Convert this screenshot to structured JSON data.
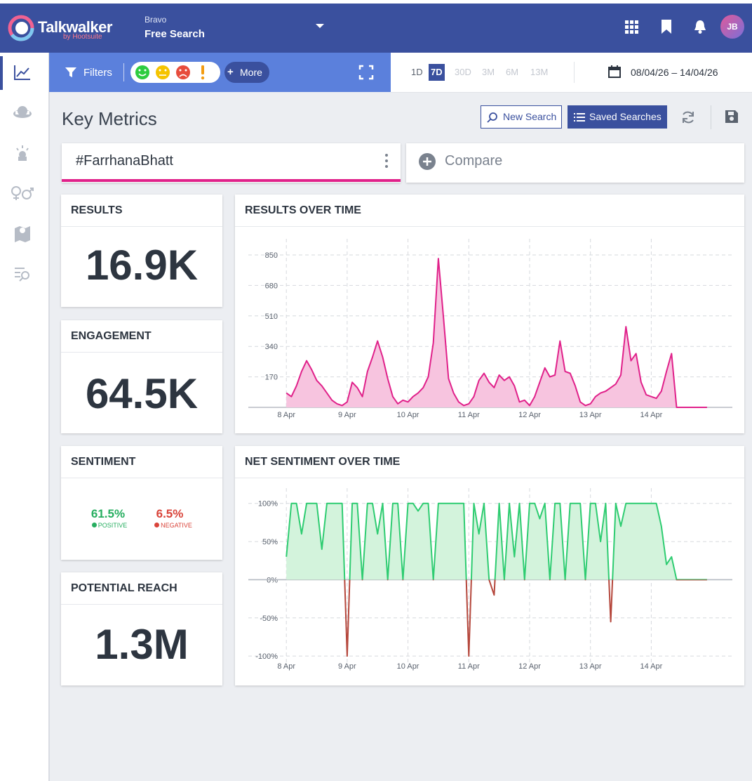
{
  "header": {
    "logo": "Talkwalker",
    "logo_sub": "by Hootsuite",
    "workspace": "Bravo",
    "project": "Free Search",
    "avatar": "JB"
  },
  "toolbar": {
    "filters": "Filters",
    "more": "More",
    "ranges": [
      "1D",
      "7D",
      "30D",
      "3M",
      "6M",
      "13M"
    ],
    "active_range": 1,
    "date_range": "08/04/26 – 14/04/26"
  },
  "page": {
    "title": "Key Metrics",
    "new_search": "New Search",
    "saved_searches": "Saved Searches"
  },
  "tabs": {
    "query": "#FarrhanaBhatt",
    "compare": "Compare"
  },
  "metrics": {
    "results": {
      "label": "RESULTS",
      "value": "16.9K"
    },
    "engagement": {
      "label": "ENGAGEMENT",
      "value": "64.5K"
    },
    "sentiment": {
      "label": "SENTIMENT",
      "positive": "61.5%",
      "positive_label": "POSITIVE",
      "negative": "6.5%",
      "negative_label": "NEGATIVE"
    },
    "reach": {
      "label": "POTENTIAL REACH",
      "value": "1.3M"
    }
  },
  "chart_data": [
    {
      "type": "area",
      "title": "RESULTS OVER TIME",
      "color": "#e0218a",
      "fill": "#f7c4df",
      "x": [
        0,
        2,
        4,
        6,
        8,
        10,
        12,
        14,
        16,
        18,
        20,
        22,
        24,
        26,
        28,
        30,
        32,
        34,
        36,
        38,
        40,
        42,
        44,
        46,
        48,
        50,
        52,
        54,
        56,
        58,
        60,
        62,
        64,
        66,
        68,
        70,
        72,
        74,
        76,
        78,
        80,
        82,
        84,
        86,
        88,
        90,
        92,
        94,
        96,
        98,
        100,
        102,
        104,
        106,
        108,
        110,
        112,
        114,
        116,
        118,
        120,
        122,
        124,
        126,
        128,
        130,
        132,
        134,
        136,
        138,
        140,
        142,
        144,
        146,
        148,
        150,
        152,
        154,
        156,
        158,
        160,
        162,
        164,
        166
      ],
      "values": [
        80,
        60,
        120,
        200,
        260,
        210,
        150,
        120,
        80,
        40,
        20,
        10,
        30,
        140,
        110,
        60,
        200,
        280,
        370,
        280,
        160,
        60,
        20,
        40,
        30,
        60,
        80,
        110,
        170,
        360,
        830,
        500,
        160,
        80,
        30,
        10,
        20,
        60,
        150,
        190,
        140,
        110,
        180,
        150,
        170,
        120,
        30,
        40,
        10,
        60,
        140,
        220,
        170,
        180,
        370,
        200,
        190,
        120,
        30,
        10,
        20,
        60,
        80,
        90,
        110,
        130,
        180,
        450,
        260,
        300,
        140,
        70,
        60,
        50,
        90,
        200,
        300,
        0,
        0,
        0,
        0,
        0,
        0,
        0
      ],
      "xlim": [
        -15,
        176
      ],
      "xticks": [
        {
          "value": 0,
          "label": "8 Apr"
        },
        {
          "value": 24,
          "label": "9 Apr"
        },
        {
          "value": 48,
          "label": "10 Apr"
        },
        {
          "value": 72,
          "label": "11 Apr"
        },
        {
          "value": 96,
          "label": "12 Apr"
        },
        {
          "value": 120,
          "label": "13 Apr"
        },
        {
          "value": 144,
          "label": "14 Apr"
        }
      ],
      "ylim": [
        0,
        940
      ],
      "yticks": [
        170,
        340,
        510,
        680,
        850
      ],
      "grid": true
    },
    {
      "type": "area",
      "title": "NET SENTIMENT OVER TIME",
      "color": "#2ecc71",
      "negative_color": "#b5473c",
      "fill": "#d3f3dc",
      "x": [
        0,
        2,
        4,
        6,
        8,
        10,
        12,
        14,
        16,
        18,
        20,
        22,
        24,
        26,
        28,
        30,
        32,
        34,
        36,
        38,
        40,
        42,
        44,
        46,
        48,
        50,
        52,
        54,
        56,
        58,
        60,
        62,
        64,
        66,
        68,
        70,
        72,
        74,
        76,
        78,
        80,
        82,
        84,
        86,
        88,
        90,
        92,
        94,
        96,
        98,
        100,
        102,
        104,
        106,
        108,
        110,
        112,
        114,
        116,
        118,
        120,
        122,
        124,
        126,
        128,
        130,
        132,
        134,
        136,
        138,
        140,
        142,
        144,
        146,
        148,
        150,
        152,
        154,
        156,
        158,
        160,
        162,
        164,
        166
      ],
      "values": [
        30,
        100,
        100,
        60,
        100,
        100,
        100,
        40,
        100,
        100,
        100,
        100,
        -100,
        100,
        100,
        0,
        100,
        100,
        60,
        100,
        0,
        100,
        100,
        0,
        100,
        100,
        90,
        100,
        100,
        0,
        100,
        100,
        100,
        100,
        100,
        100,
        -100,
        100,
        60,
        100,
        0,
        -20,
        100,
        0,
        100,
        30,
        100,
        0,
        100,
        100,
        80,
        100,
        0,
        100,
        100,
        0,
        100,
        100,
        100,
        0,
        100,
        100,
        50,
        100,
        -55,
        100,
        70,
        100,
        100,
        100,
        100,
        100,
        100,
        100,
        70,
        20,
        30,
        0,
        0,
        0,
        0,
        0,
        0,
        0
      ],
      "xlim": [
        -15,
        176
      ],
      "xticks": [
        {
          "value": 0,
          "label": "8 Apr"
        },
        {
          "value": 24,
          "label": "9 Apr"
        },
        {
          "value": 48,
          "label": "10 Apr"
        },
        {
          "value": 72,
          "label": "11 Apr"
        },
        {
          "value": 96,
          "label": "12 Apr"
        },
        {
          "value": 120,
          "label": "13 Apr"
        },
        {
          "value": 144,
          "label": "14 Apr"
        }
      ],
      "ylim": [
        -110,
        120
      ],
      "yticks": [
        {
          "value": 100,
          "label": "100%"
        },
        {
          "value": 50,
          "label": "50%"
        },
        {
          "value": 0,
          "label": "0%"
        },
        {
          "value": -50,
          "label": "-50%"
        },
        {
          "value": -100,
          "label": "-100%"
        }
      ],
      "grid": true
    }
  ]
}
